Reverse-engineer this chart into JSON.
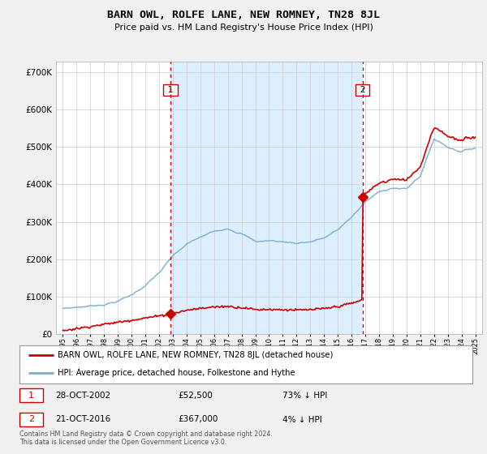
{
  "title": "BARN OWL, ROLFE LANE, NEW ROMNEY, TN28 8JL",
  "subtitle": "Price paid vs. HM Land Registry's House Price Index (HPI)",
  "legend_label_red": "BARN OWL, ROLFE LANE, NEW ROMNEY, TN28 8JL (detached house)",
  "legend_label_blue": "HPI: Average price, detached house, Folkestone and Hythe",
  "footnote": "Contains HM Land Registry data © Crown copyright and database right 2024.\nThis data is licensed under the Open Government Licence v3.0.",
  "sale1_date": "28-OCT-2002",
  "sale1_price": 52500,
  "sale1_pct": "73% ↓ HPI",
  "sale2_date": "21-OCT-2016",
  "sale2_price": 367000,
  "sale2_pct": "4% ↓ HPI",
  "ylim": [
    0,
    730000
  ],
  "yticks": [
    0,
    100000,
    200000,
    300000,
    400000,
    500000,
    600000,
    700000
  ],
  "background_color": "#f0f0f0",
  "plot_bg_color": "#ffffff",
  "red_color": "#cc0000",
  "blue_color": "#7aadd4",
  "shade_color": "#ddeeff",
  "vline_color": "#cc0000",
  "grid_color": "#cccccc",
  "sale1_year": 2002.83,
  "sale2_year": 2016.8,
  "xlim_left": 1994.5,
  "xlim_right": 2025.5
}
